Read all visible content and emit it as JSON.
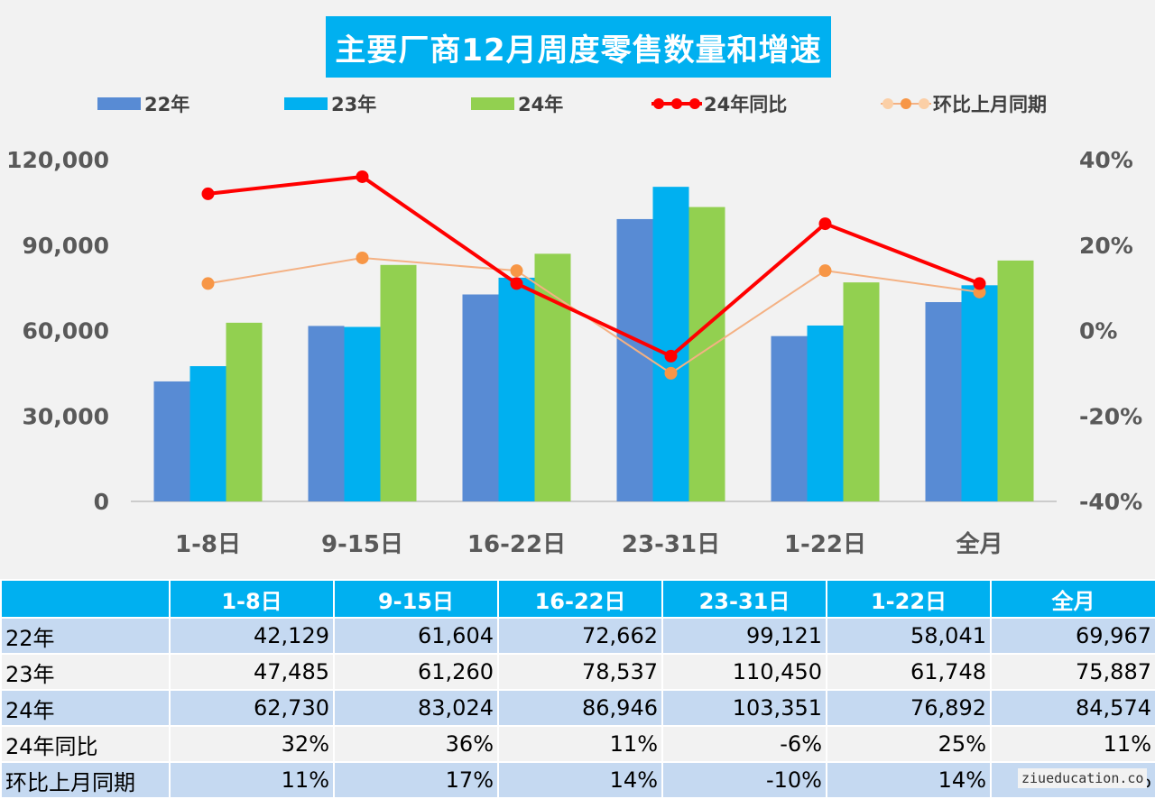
{
  "chart_data": {
    "type": "bar",
    "title": "主要厂商12月周度零售数量和增速",
    "categories": [
      "1-8日",
      "9-15日",
      "16-22日",
      "23-31日",
      "1-22日",
      "全月"
    ],
    "series": [
      {
        "name": "22年",
        "kind": "bar",
        "color": "#588bd4",
        "values": [
          42129,
          61604,
          72662,
          99121,
          58041,
          69967
        ]
      },
      {
        "name": "23年",
        "kind": "bar",
        "color": "#00b0f0",
        "values": [
          47485,
          61260,
          78537,
          110450,
          61748,
          75887
        ]
      },
      {
        "name": "24年",
        "kind": "bar",
        "color": "#92d050",
        "values": [
          62730,
          83024,
          86946,
          103351,
          76892,
          84574
        ]
      },
      {
        "name": "24年同比",
        "kind": "line",
        "axis": "right",
        "color": "#ff0000",
        "values": [
          32,
          36,
          11,
          -6,
          25,
          11
        ]
      },
      {
        "name": "环比上月同期",
        "kind": "line",
        "axis": "right",
        "color": "#f4b183",
        "marker_color": "#f79646",
        "values": [
          11,
          17,
          14,
          -10,
          14,
          9
        ]
      }
    ],
    "y_left": {
      "min": 0,
      "max": 120000,
      "ticks": [
        "0",
        "30,000",
        "60,000",
        "90,000",
        "120,000"
      ]
    },
    "y_right": {
      "min": -40,
      "max": 40,
      "ticks": [
        "-40%",
        "-20%",
        "0%",
        "20%",
        "40%"
      ]
    },
    "grid": false,
    "legend_position": "top"
  },
  "table": {
    "headers": [
      "",
      "1-8日",
      "9-15日",
      "16-22日",
      "23-31日",
      "1-22日",
      "全月"
    ],
    "rows": [
      {
        "label": "22年",
        "cells": [
          "42,129",
          "61,604",
          "72,662",
          "99,121",
          "58,041",
          "69,967"
        ]
      },
      {
        "label": "23年",
        "cells": [
          "47,485",
          "61,260",
          "78,537",
          "110,450",
          "61,748",
          "75,887"
        ]
      },
      {
        "label": "24年",
        "cells": [
          "62,730",
          "83,024",
          "86,946",
          "103,351",
          "76,892",
          "84,574"
        ]
      },
      {
        "label": "24年同比",
        "cells": [
          "32%",
          "36%",
          "11%",
          "-6%",
          "25%",
          "11%"
        ]
      },
      {
        "label": "环比上月同期",
        "cells": [
          "11%",
          "17%",
          "14%",
          "-10%",
          "14%",
          "9%"
        ]
      }
    ]
  },
  "watermark": "ziueducation.co"
}
